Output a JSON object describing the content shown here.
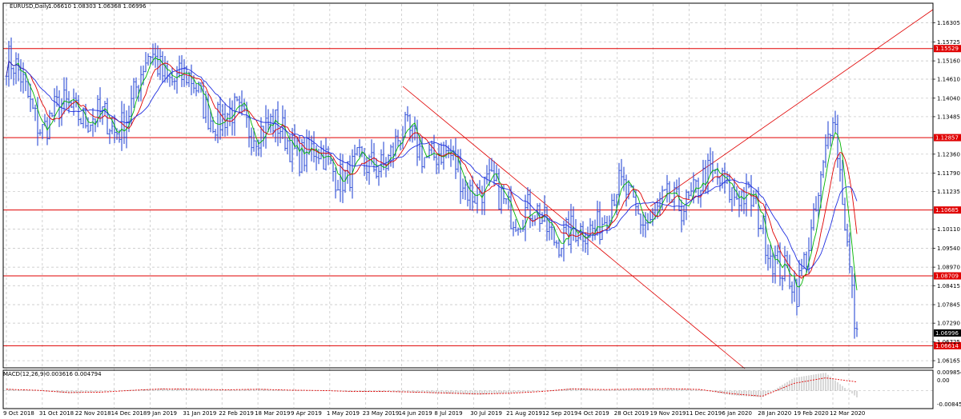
{
  "header": {
    "symbol": "EURUSD,Daily",
    "ohlc": "1.06610 1.08303 1.06368 1.06996"
  },
  "macd": {
    "label": "MACD(12,26,9)",
    "values": "-0.003616 0.004794",
    "scale": [
      "0.009854",
      "0.00",
      "-0.008456"
    ]
  },
  "colors": {
    "background": "#ffffff",
    "grid": "#c0c0c0",
    "price": "#2b4ad6",
    "ma_fast": "#00b400",
    "ma_mid": "#e00000",
    "ma_slow": "#1f2ee0",
    "level": "#e00000",
    "trendline": "#e00000",
    "macd_hist": "#b0b0b0",
    "macd_signal": "#e00000",
    "last_price_tag": "#000000"
  },
  "chart_data": {
    "type": "line",
    "symbol": "EURUSD",
    "timeframe": "Daily",
    "x_tick_labels": [
      "9 Oct 2018",
      "31 Oct 2018",
      "22 Nov 2018",
      "14 Dec 2018",
      "9 Jan 2019",
      "31 Jan 2019",
      "22 Feb 2019",
      "18 Mar 2019",
      "9 Apr 2019",
      "1 May 2019",
      "23 May 2019",
      "14 Jun 2019",
      "8 Jul 2019",
      "30 Jul 2019",
      "21 Aug 2019",
      "12 Sep 2019",
      "4 Oct 2019",
      "28 Oct 2019",
      "19 Nov 2019",
      "11 Dec 2019",
      "6 Jan 2020",
      "28 Jan 2020",
      "19 Feb 2020",
      "12 Mar 2020"
    ],
    "y_tick_labels": [
      "1.16305",
      "1.15725",
      "1.15160",
      "1.14610",
      "1.14040",
      "1.13485",
      "1.12360",
      "1.11790",
      "1.11235",
      "1.10110",
      "1.09540",
      "1.08970",
      "1.08415",
      "1.07845",
      "1.07290",
      "1.06725",
      "1.06165"
    ],
    "ylim": [
      1.0595,
      1.1665
    ],
    "horizontal_levels": [
      1.15529,
      1.12857,
      1.10685,
      1.08709,
      1.06614
    ],
    "last_price": 1.06996,
    "series": [
      {
        "name": "EURUSD",
        "points": [
          [
            "9 Oct 2018",
            1.152
          ],
          [
            "31 Oct 2018",
            1.133
          ],
          [
            "22 Nov 2018",
            1.138
          ],
          [
            "14 Dec 2018",
            1.13
          ],
          [
            "9 Jan 2019",
            1.152
          ],
          [
            "31 Jan 2019",
            1.145
          ],
          [
            "22 Feb 2019",
            1.134
          ],
          [
            "18 Mar 2019",
            1.133
          ],
          [
            "9 Apr 2019",
            1.127
          ],
          [
            "1 May 2019",
            1.12
          ],
          [
            "23 May 2019",
            1.118
          ],
          [
            "14 Jun 2019",
            1.128
          ],
          [
            "8 Jul 2019",
            1.124
          ],
          [
            "30 Jul 2019",
            1.114
          ],
          [
            "21 Aug 2019",
            1.109
          ],
          [
            "12 Sep 2019",
            1.102
          ],
          [
            "4 Oct 2019",
            1.098
          ],
          [
            "28 Oct 2019",
            1.112
          ],
          [
            "19 Nov 2019",
            1.104
          ],
          [
            "11 Dec 2019",
            1.112
          ],
          [
            "6 Jan 2020",
            1.117
          ],
          [
            "28 Jan 2020",
            1.103
          ],
          [
            "19 Feb 2020",
            1.08
          ],
          [
            "12 Mar 2020",
            1.135
          ],
          [
            "12 Mar 2020",
            1.07
          ]
        ]
      }
    ],
    "macd": {
      "label": "MACD(12,26,9)",
      "ylim": [
        -0.008456,
        0.009854
      ],
      "histogram": [
        0.001,
        0.0,
        -0.0015,
        -0.0005,
        0.0005,
        0.0012,
        0.0008,
        0.0004,
        0.001,
        0.0002,
        0.0,
        -0.0006,
        -0.0004,
        -0.001,
        -0.0016,
        -0.0022,
        -0.0012,
        -0.0002,
        0.0014,
        0.0004,
        0.001,
        0.0012,
        0.0006,
        -0.0024,
        -0.0036,
        0.007,
        0.0098,
        -0.0036
      ],
      "signal": [
        0.0008,
        0.0002,
        -0.001,
        -0.0008,
        0.0002,
        0.001,
        0.0008,
        0.0005,
        0.0008,
        0.0003,
        0.0001,
        -0.0004,
        -0.0004,
        -0.0008,
        -0.0013,
        -0.0018,
        -0.0014,
        -0.0004,
        0.001,
        0.0006,
        0.0009,
        0.0011,
        0.0007,
        -0.0016,
        -0.003,
        0.004,
        0.007,
        0.0048
      ]
    }
  }
}
